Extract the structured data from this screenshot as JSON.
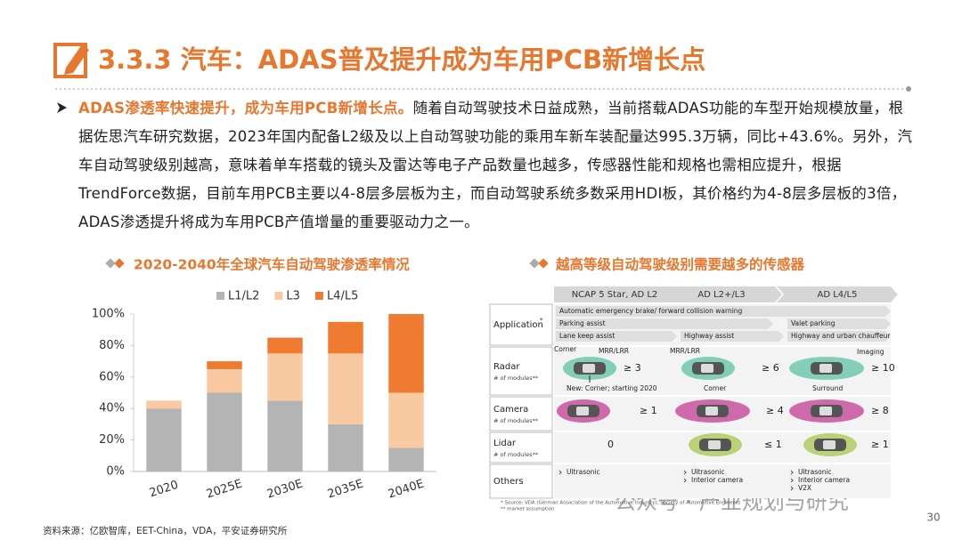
{
  "header": {
    "title": "3.3.3 汽车：ADAS普及提升成为车用PCB新增长点"
  },
  "body": {
    "lead": "ADAS渗透率快速提升，成为车用PCB新增长点。",
    "text": "随着自动驾驶技术日益成熟，当前搭载ADAS功能的车型开始规模放量，根据佐思汽车研究数据，2023年国内配备L2级及以上自动驾驶功能的乘用车新车装配量达995.3万辆，同比+43.6%。另外，汽车自动驾驶级别越高，意味着单车搭载的镜头及雷达等电子产品数量也越多，传感器性能和规格也需相应提升，根据TrendForce数据，目前车用PCB主要以4-8层多层板为主，而自动驾驶系统多数采用HDI板，其价格约为4-8层多层板的3倍，ADAS渗透提升将成为车用PCB产值增量的重要驱动力之一。"
  },
  "chart_data": {
    "type": "stacked-bar",
    "title": "2020-2040年全球汽车自动驾驶渗透率情况",
    "categories": [
      "2020",
      "2025E",
      "2030E",
      "2035E",
      "2040E"
    ],
    "series": [
      {
        "name": "L1/L2",
        "color": "#b4b4b4",
        "values": [
          40,
          50,
          45,
          30,
          15
        ]
      },
      {
        "name": "L3",
        "color": "#f9c9a1",
        "values": [
          5,
          15,
          30,
          45,
          35
        ]
      },
      {
        "name": "L4/L5",
        "color": "#ee7b30",
        "values": [
          0,
          5,
          10,
          20,
          50
        ]
      }
    ],
    "ylim": [
      0,
      100
    ],
    "yticks": [
      {
        "value": 0,
        "label": "0%"
      },
      {
        "value": 20,
        "label": "20%"
      },
      {
        "value": 40,
        "label": "40%"
      },
      {
        "value": 60,
        "label": "60%"
      },
      {
        "value": 80,
        "label": "80%"
      },
      {
        "value": 100,
        "label": "100%"
      }
    ],
    "legend": "top",
    "grid": false
  },
  "diagram": {
    "title": "越高等级自动驾驶级别需要越多的传感器",
    "columns": [
      "NCAP 5 Star, AD L2",
      "AD L2+/L3",
      "AD L4/L5"
    ],
    "application": {
      "label": "Application",
      "note": "*",
      "items": [
        "Automatic emergency brake/ forward collision warning",
        "Parking assist",
        "Valet parking",
        "Lane keep assist",
        "Highway assist",
        "Highway and urban chauffeur"
      ]
    },
    "radar": {
      "label": "Radar",
      "sublabel": "# of modules**",
      "cells": [
        "≥ 3",
        "≥ 6",
        "≥ 10"
      ],
      "annotations": [
        "Corner",
        "MRR/LRR",
        "MRR/LRR",
        "Imaging",
        "New: Corner; starting 2020",
        "Corner",
        "Surround"
      ]
    },
    "camera": {
      "label": "Camera",
      "sublabel": "# of modules**",
      "cells": [
        "≥ 1",
        "≥ 4",
        "≥ 8"
      ]
    },
    "lidar": {
      "label": "Lidar",
      "sublabel": "# of modules**",
      "cells": [
        "0",
        "≤ 1",
        "≥ 1"
      ]
    },
    "others": {
      "label": "Others",
      "cells": [
        [
          "Ultrasonic"
        ],
        [
          "Ultrasonic",
          "Interior camera"
        ],
        [
          "Ultrasonic",
          "Interior camera",
          "V2X"
        ]
      ]
    },
    "footnotes": [
      "* Source: VDA (German Association of the Automotive Industry); Society of Automotive Engineers",
      "** market assumption"
    ]
  },
  "footer": {
    "source": "资料来源：亿欧智库，EET-China，VDA，平安证券研究所",
    "watermark": "公众号 · 产业规划与研究",
    "page": "30"
  }
}
